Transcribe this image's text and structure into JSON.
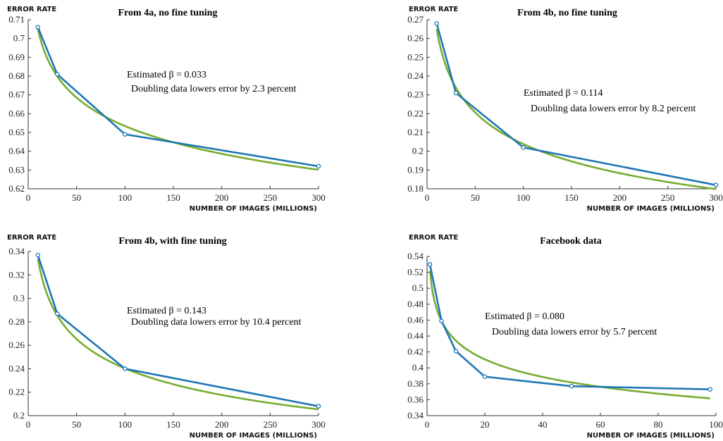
{
  "colors": {
    "data_line": "#1f77b4",
    "fit_line": "#77ac30",
    "axis": "#333333"
  },
  "chart_data": [
    {
      "type": "line",
      "title": "From 4a, no fine tuning",
      "ylabel": "ERROR RATE",
      "xlabel": "NUMBER OF IMAGES (MILLIONS)",
      "xlim": [
        0,
        300
      ],
      "ylim": [
        0.62,
        0.71
      ],
      "xticks": [
        0,
        50,
        100,
        150,
        200,
        250,
        300
      ],
      "xtick_labels": [
        "0",
        "50",
        "100",
        "150",
        "200",
        "250",
        "300"
      ],
      "yticks": [
        0.62,
        0.63,
        0.64,
        0.65,
        0.66,
        0.67,
        0.68,
        0.69,
        0.7,
        0.71
      ],
      "ytick_labels": [
        "0.62",
        "0.63",
        "0.64",
        "0.65",
        "0.66",
        "0.67",
        "0.68",
        "0.69",
        "0.7",
        "0.71"
      ],
      "annotation_1": "Estimated β = 0.033",
      "annotation_2": "Doubling data lowers error by 2.3 percent",
      "series": [
        {
          "kind": "data",
          "x": [
            10,
            30,
            100,
            300
          ],
          "y": [
            0.706,
            0.681,
            0.649,
            0.632
          ]
        },
        {
          "kind": "fit",
          "x_range": [
            10,
            300
          ],
          "anchor_x": 10,
          "anchor_y": 0.705,
          "beta": 0.033
        }
      ]
    },
    {
      "type": "line",
      "title": "From 4b, no fine tuning",
      "ylabel": "ERROR RATE",
      "xlabel": "NUMBER OF IMAGES (MILLIONS)",
      "xlim": [
        0,
        300
      ],
      "ylim": [
        0.18,
        0.27
      ],
      "xticks": [
        0,
        50,
        100,
        150,
        200,
        250,
        300
      ],
      "xtick_labels": [
        "0",
        "50",
        "100",
        "150",
        "200",
        "250",
        "300"
      ],
      "yticks": [
        0.18,
        0.19,
        0.2,
        0.21,
        0.22,
        0.23,
        0.24,
        0.25,
        0.26,
        0.27
      ],
      "ytick_labels": [
        "0.18",
        "0.19",
        "0.2",
        "0.21",
        "0.22",
        "0.23",
        "0.24",
        "0.25",
        "0.26",
        "0.27"
      ],
      "annotation_1": "Estimated β = 0.114",
      "annotation_2": "Doubling data lowers error by 8.2 percent",
      "series": [
        {
          "kind": "data",
          "x": [
            10,
            30,
            100,
            300
          ],
          "y": [
            0.268,
            0.231,
            0.202,
            0.182
          ]
        },
        {
          "kind": "fit",
          "x_range": [
            10,
            300
          ],
          "anchor_x": 10,
          "anchor_y": 0.265,
          "beta": 0.114
        }
      ]
    },
    {
      "type": "line",
      "title": "From 4b, with fine tuning",
      "ylabel": "ERROR RATE",
      "xlabel": "NUMBER OF IMAGES (MILLIONS)",
      "xlim": [
        0,
        300
      ],
      "ylim": [
        0.2,
        0.34
      ],
      "xticks": [
        0,
        50,
        100,
        150,
        200,
        250,
        300
      ],
      "xtick_labels": [
        "0",
        "50",
        "100",
        "150",
        "200",
        "250",
        "300"
      ],
      "yticks": [
        0.2,
        0.22,
        0.24,
        0.26,
        0.28,
        0.3,
        0.32,
        0.34
      ],
      "ytick_labels": [
        "0.2",
        "0.22",
        "0.24",
        "0.26",
        "0.28",
        "0.3",
        "0.32",
        "0.34"
      ],
      "annotation_1": "Estimated β = 0.143",
      "annotation_2": "Doubling data lowers error by 10.4 percent",
      "series": [
        {
          "kind": "data",
          "x": [
            10,
            30,
            100,
            300
          ],
          "y": [
            0.337,
            0.287,
            0.24,
            0.208
          ]
        },
        {
          "kind": "fit",
          "x_range": [
            10,
            300
          ],
          "anchor_x": 10,
          "anchor_y": 0.334,
          "beta": 0.143
        }
      ]
    },
    {
      "type": "line",
      "title": "Facebook data",
      "ylabel": "ERROR RATE",
      "xlabel": "NUMBER OF IMAGES (MILLIONS)",
      "xlim": [
        0,
        100
      ],
      "ylim": [
        0.34,
        0.54
      ],
      "xticks": [
        0,
        20,
        40,
        60,
        80,
        100
      ],
      "xtick_labels": [
        "0",
        "20",
        "40",
        "60",
        "80",
        "100"
      ],
      "yticks": [
        0.34,
        0.36,
        0.38,
        0.4,
        0.42,
        0.44,
        0.46,
        0.48,
        0.5,
        0.52,
        0.54
      ],
      "ytick_labels": [
        "0.34",
        "0.36",
        "0.38",
        "0.4",
        "0.42",
        "0.44",
        "0.46",
        "0.48",
        "0.5",
        "0.52",
        "0.54"
      ],
      "annotation_1": "Estimated β = 0.080",
      "annotation_2": "Doubling data lowers error by 5.7 percent",
      "series": [
        {
          "kind": "data",
          "x": [
            1,
            5,
            10,
            20,
            50,
            98
          ],
          "y": [
            0.53,
            0.459,
            0.421,
            0.389,
            0.377,
            0.373
          ]
        },
        {
          "kind": "fit",
          "x_range": [
            1,
            98
          ],
          "anchor_x": 1,
          "anchor_y": 0.522,
          "beta": 0.08
        }
      ]
    }
  ]
}
